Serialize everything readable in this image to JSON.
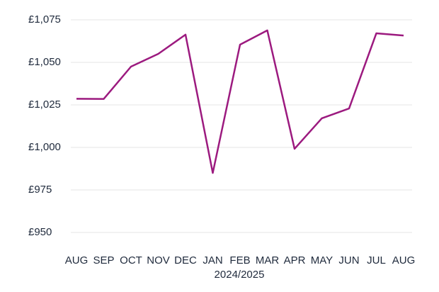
{
  "chart_data": {
    "type": "line",
    "categories": [
      "AUG",
      "SEP",
      "OCT",
      "NOV",
      "DEC",
      "JAN",
      "FEB",
      "MAR",
      "APR",
      "MAY",
      "JUN",
      "JUL",
      "AUG"
    ],
    "x_label": "2024/2025",
    "series": [
      {
        "color": "#9c1a7f",
        "values": [
          1028.6,
          1028.5,
          1047.5,
          1055,
          1066.3,
          985,
          1060.4,
          1068.8,
          999.2,
          1017.1,
          1022.9,
          1067.1,
          1065.8
        ]
      }
    ],
    "ylim": [
      950,
      1075
    ],
    "yticks": [
      {
        "value": 950,
        "label": "£950"
      },
      {
        "value": 975,
        "label": "£975"
      },
      {
        "value": 1000,
        "label": "£1,000"
      },
      {
        "value": 1025,
        "label": "£1,025"
      },
      {
        "value": 1050,
        "label": "£1,050"
      },
      {
        "value": 1075,
        "label": "£1,075"
      }
    ],
    "grid": true
  }
}
